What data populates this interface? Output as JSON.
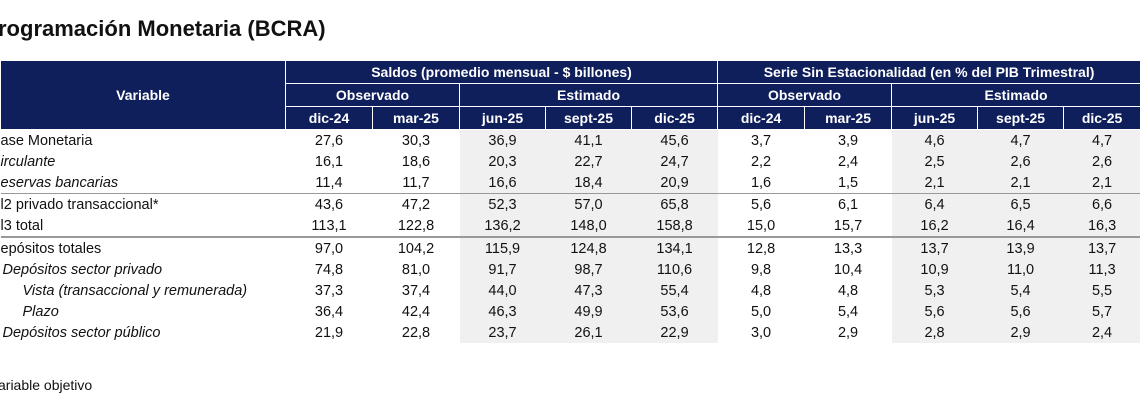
{
  "title": "rogramación Monetaria (BCRA)",
  "header": {
    "variable": "Variable",
    "group1": "Saldos (promedio mensual - $ billones)",
    "group2": "Serie Sin Estacionalidad (en % del PIB Trimestral)",
    "observado": "Observado",
    "estimado": "Estimado",
    "periods": [
      "dic-24",
      "mar-25",
      "jun-25",
      "sept-25",
      "dic-25"
    ]
  },
  "colors": {
    "header_bg": "#0f1f5c",
    "estimated_shade": "#f0f0f0"
  },
  "rows": [
    {
      "label": "ase Monetaria",
      "style": "normal",
      "values": [
        "27,6",
        "30,3",
        "36,9",
        "41,1",
        "45,6",
        "3,7",
        "3,9",
        "4,6",
        "4,7",
        "4,7"
      ]
    },
    {
      "label": "irculante",
      "style": "italic",
      "values": [
        "16,1",
        "18,6",
        "20,3",
        "22,7",
        "24,7",
        "2,2",
        "2,4",
        "2,5",
        "2,6",
        "2,6"
      ]
    },
    {
      "label": "eservas bancarias",
      "style": "italic",
      "values": [
        "11,4",
        "11,7",
        "16,6",
        "18,4",
        "20,9",
        "1,6",
        "1,5",
        "2,1",
        "2,1",
        "2,1"
      ],
      "sep": "thin"
    },
    {
      "label": "l2 privado transaccional*",
      "style": "normal",
      "values": [
        "43,6",
        "47,2",
        "52,3",
        "57,0",
        "65,8",
        "5,6",
        "6,1",
        "6,4",
        "6,5",
        "6,6"
      ]
    },
    {
      "label": "l3 total",
      "style": "normal",
      "values": [
        "113,1",
        "122,8",
        "136,2",
        "148,0",
        "158,8",
        "15,0",
        "15,7",
        "16,2",
        "16,4",
        "16,3"
      ],
      "sep": "thick"
    },
    {
      "label": "epósitos totales",
      "style": "normal",
      "values": [
        "97,0",
        "104,2",
        "115,9",
        "124,8",
        "134,1",
        "12,8",
        "13,3",
        "13,7",
        "13,9",
        "13,7"
      ]
    },
    {
      "label": "Depósitos sector privado",
      "style": "italic1",
      "values": [
        "74,8",
        "81,0",
        "91,7",
        "98,7",
        "110,6",
        "9,8",
        "10,4",
        "10,9",
        "11,0",
        "11,3"
      ]
    },
    {
      "label": "Vista (transaccional y remunerada)",
      "style": "italic2",
      "values": [
        "37,3",
        "37,4",
        "44,0",
        "47,3",
        "55,4",
        "4,8",
        "4,8",
        "5,3",
        "5,4",
        "5,5"
      ]
    },
    {
      "label": "Plazo",
      "style": "italic2",
      "values": [
        "36,4",
        "42,4",
        "46,3",
        "49,9",
        "53,6",
        "5,0",
        "5,4",
        "5,6",
        "5,6",
        "5,7"
      ]
    },
    {
      "label": "Depósitos sector público",
      "style": "italic1",
      "values": [
        "21,9",
        "22,8",
        "23,7",
        "26,1",
        "22,9",
        "3,0",
        "2,9",
        "2,8",
        "2,9",
        "2,4"
      ]
    }
  ],
  "footnote": "ariable objetivo"
}
